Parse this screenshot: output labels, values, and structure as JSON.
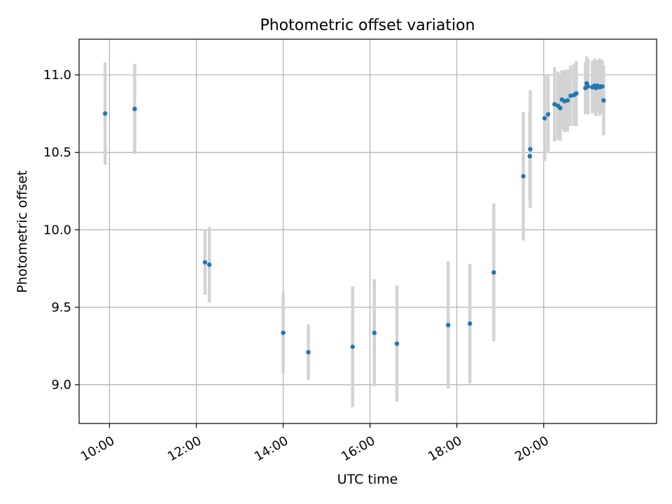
{
  "chart_data": {
    "type": "scatter",
    "title": "Photometric offset variation",
    "xlabel": "UTC time",
    "ylabel": "Photometric offset",
    "xlim_hours": [
      9.3,
      22.6
    ],
    "ylim": [
      8.75,
      11.23
    ],
    "grid": true,
    "x_ticks": [
      {
        "hour": 10,
        "label": "10:00"
      },
      {
        "hour": 12,
        "label": "12:00"
      },
      {
        "hour": 14,
        "label": "14:00"
      },
      {
        "hour": 16,
        "label": "16:00"
      },
      {
        "hour": 18,
        "label": "18:00"
      },
      {
        "hour": 20,
        "label": "20:00"
      }
    ],
    "y_ticks": [
      {
        "value": 9.0,
        "label": "9.0"
      },
      {
        "value": 9.5,
        "label": "9.5"
      },
      {
        "value": 10.0,
        "label": "10.0"
      },
      {
        "value": 10.5,
        "label": "10.5"
      },
      {
        "value": 11.0,
        "label": "11.0"
      }
    ],
    "colors": {
      "point": "#1f77b4",
      "errorbar": "#d3d3d3",
      "grid": "#b0b0b0"
    },
    "series": [
      {
        "name": "offset",
        "points": [
          {
            "x": 9.9,
            "y": 10.75,
            "err": 0.33
          },
          {
            "x": 10.58,
            "y": 10.78,
            "err": 0.29
          },
          {
            "x": 12.2,
            "y": 9.79,
            "err": 0.21
          },
          {
            "x": 12.3,
            "y": 9.775,
            "err": 0.245
          },
          {
            "x": 14.0,
            "y": 9.335,
            "err": 0.26
          },
          {
            "x": 14.58,
            "y": 9.21,
            "err": 0.18
          },
          {
            "x": 15.6,
            "y": 9.245,
            "err": 0.39
          },
          {
            "x": 16.1,
            "y": 9.335,
            "err": 0.345
          },
          {
            "x": 16.62,
            "y": 9.265,
            "err": 0.375
          },
          {
            "x": 17.8,
            "y": 9.385,
            "err": 0.41
          },
          {
            "x": 18.3,
            "y": 9.395,
            "err": 0.385
          },
          {
            "x": 18.85,
            "y": 9.725,
            "err": 0.445
          },
          {
            "x": 19.53,
            "y": 10.345,
            "err": 0.415
          },
          {
            "x": 19.68,
            "y": 10.475,
            "err": 0.29
          },
          {
            "x": 19.69,
            "y": 10.52,
            "err": 0.38
          },
          {
            "x": 20.02,
            "y": 10.72,
            "err": 0.275
          },
          {
            "x": 20.1,
            "y": 10.745,
            "err": 0.25
          },
          {
            "x": 20.25,
            "y": 10.81,
            "err": 0.24
          },
          {
            "x": 20.33,
            "y": 10.8,
            "err": 0.22
          },
          {
            "x": 20.38,
            "y": 10.785,
            "err": 0.21
          },
          {
            "x": 20.42,
            "y": 10.84,
            "err": 0.19
          },
          {
            "x": 20.48,
            "y": 10.83,
            "err": 0.2
          },
          {
            "x": 20.55,
            "y": 10.835,
            "err": 0.2
          },
          {
            "x": 20.62,
            "y": 10.865,
            "err": 0.195
          },
          {
            "x": 20.7,
            "y": 10.87,
            "err": 0.2
          },
          {
            "x": 20.75,
            "y": 10.88,
            "err": 0.21
          },
          {
            "x": 20.96,
            "y": 10.915,
            "err": 0.17
          },
          {
            "x": 20.99,
            "y": 10.945,
            "err": 0.175
          },
          {
            "x": 21.02,
            "y": 10.925,
            "err": 0.18
          },
          {
            "x": 21.12,
            "y": 10.92,
            "err": 0.17
          },
          {
            "x": 21.17,
            "y": 10.93,
            "err": 0.175
          },
          {
            "x": 21.2,
            "y": 10.915,
            "err": 0.18
          },
          {
            "x": 21.24,
            "y": 10.93,
            "err": 0.165
          },
          {
            "x": 21.29,
            "y": 10.92,
            "err": 0.185
          },
          {
            "x": 21.32,
            "y": 10.925,
            "err": 0.175
          },
          {
            "x": 21.35,
            "y": 10.925,
            "err": 0.17
          },
          {
            "x": 21.38,
            "y": 10.835,
            "err": 0.225
          }
        ]
      }
    ]
  }
}
